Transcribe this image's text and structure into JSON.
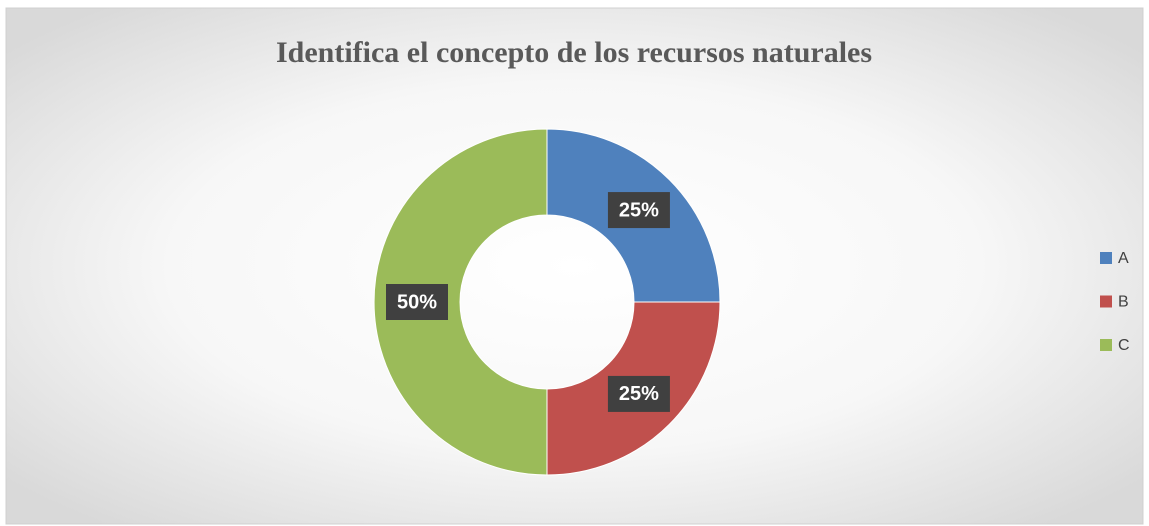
{
  "chart_data": {
    "type": "donut",
    "title": "Identifica el concepto de los recursos naturales",
    "categories": [
      "A",
      "B",
      "C"
    ],
    "values": [
      25,
      25,
      50
    ],
    "value_labels": [
      "25%",
      "25%",
      "50%"
    ],
    "colors": [
      "#4f81bd",
      "#c0504d",
      "#9bbb59"
    ],
    "legend": "right"
  }
}
